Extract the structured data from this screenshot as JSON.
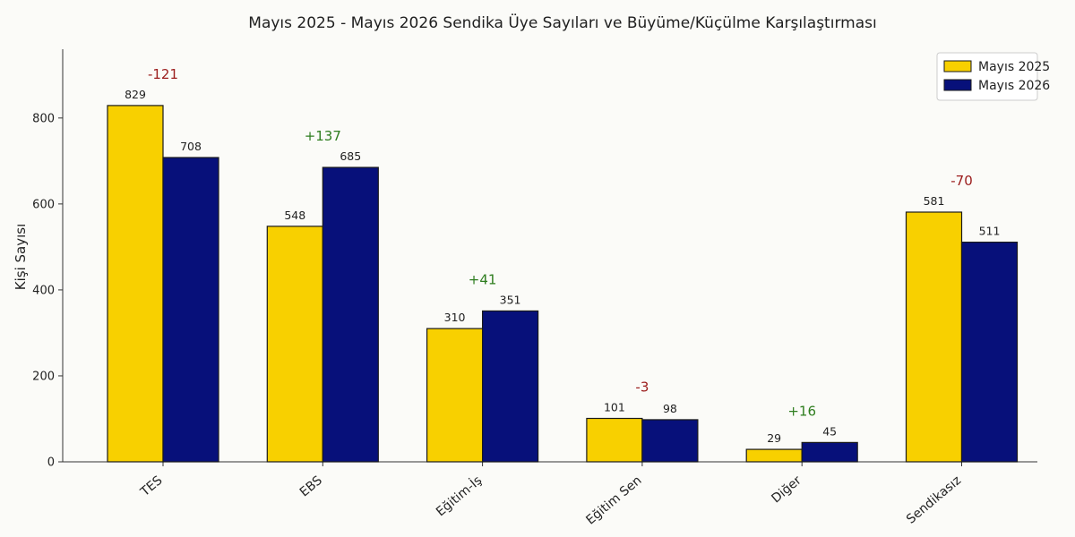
{
  "chart_data": {
    "type": "bar",
    "title": "Mayıs 2025 - Mayıs 2026 Sendika Üye Sayıları ve Büyüme/Küçülme Karşılaştırması",
    "xlabel": "",
    "ylabel": "Kişi Sayısı",
    "ylim": [
      0,
      960
    ],
    "yticks": [
      0,
      200,
      400,
      600,
      800
    ],
    "grid": false,
    "legend_position": "top-right",
    "categories": [
      "TES",
      "EBS",
      "Eğitim-İş",
      "Eğitim Sen",
      "Diğer",
      "Sendikasız"
    ],
    "series": [
      {
        "name": "Mayıs 2025",
        "color": "#f8d000",
        "values": [
          829,
          548,
          310,
          101,
          29,
          581
        ]
      },
      {
        "name": "Mayıs 2026",
        "color": "#07107a",
        "values": [
          708,
          685,
          351,
          98,
          45,
          511
        ]
      }
    ],
    "changes": [
      "-121",
      "+137",
      "+41",
      "-3",
      "+16",
      "-70"
    ],
    "change_colors": {
      "positive": "#2e7d1e",
      "negative": "#9b1c1c"
    }
  }
}
